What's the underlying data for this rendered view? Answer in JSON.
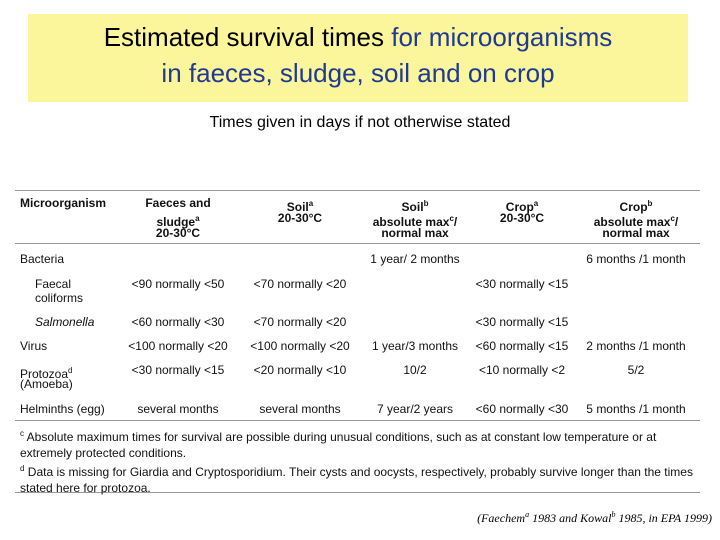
{
  "title": {
    "line1": [
      {
        "text": "Estimated survival times",
        "color": "#000000"
      },
      {
        "text": "for microorganisms",
        "color": "#1f3a93"
      }
    ],
    "line2": {
      "text": "in faeces, sludge, soil and on crop",
      "color": "#1f3a93"
    }
  },
  "subtitle": "Times given in days if not otherwise stated",
  "table": {
    "columns": [
      [
        [
          {
            "text": "Microorganism"
          }
        ]
      ],
      [
        [
          {
            "text": "Faeces and"
          }
        ],
        [
          {
            "text": "sludge"
          },
          {
            "text": "a",
            "sup": true
          }
        ],
        [
          {
            "text": "20-30°C"
          }
        ]
      ],
      [
        [
          {
            "text": "Soil"
          },
          {
            "text": "a",
            "sup": true
          }
        ],
        [
          {
            "text": "20-30°C"
          }
        ]
      ],
      [
        [
          {
            "text": "Soil"
          },
          {
            "text": "b",
            "sup": true
          }
        ],
        [
          {
            "text": "absolute max"
          },
          {
            "text": "c",
            "sup": true
          },
          {
            "text": "/"
          }
        ],
        [
          {
            "text": "normal max"
          }
        ]
      ],
      [
        [
          {
            "text": "Crop"
          },
          {
            "text": "a",
            "sup": true
          }
        ],
        [
          {
            "text": "20-30°C"
          }
        ]
      ],
      [
        [
          {
            "text": "Crop"
          },
          {
            "text": "b",
            "sup": true
          }
        ],
        [
          {
            "text": "absolute max"
          },
          {
            "text": "c",
            "sup": true
          },
          {
            "text": "/"
          }
        ],
        [
          {
            "text": "normal max"
          }
        ]
      ]
    ],
    "rows": [
      {
        "name": [
          [
            {
              "text": "Bacteria"
            }
          ]
        ],
        "cells": [
          null,
          null,
          "1 year/ 2 months",
          null,
          "6 months /1 month"
        ]
      },
      {
        "name": [
          [
            {
              "text": "Faecal"
            }
          ],
          [
            {
              "text": "coliforms"
            }
          ]
        ],
        "cells": [
          "<90 normally <50",
          "<70 normally <20",
          null,
          "<30 normally <15",
          null
        ]
      },
      {
        "name": [
          [
            {
              "text": "Salmonella",
              "italic": true
            }
          ]
        ],
        "cells": [
          "<60 normally <30",
          "<70 normally <20",
          null,
          "<30 normally <15",
          null
        ]
      },
      {
        "name": [
          [
            {
              "text": "Virus"
            }
          ]
        ],
        "cells": [
          "<100 normally <20",
          "<100 normally <20",
          "1 year/3 months",
          "<60 normally <15",
          "2 months /1 month"
        ]
      },
      {
        "name": [
          [
            {
              "text": "Protozoa"
            },
            {
              "text": "d",
              "sup": true
            }
          ],
          [
            {
              "text": "(Amoeba)"
            }
          ]
        ],
        "cells": [
          "<30 normally <15",
          "<20 normally <10",
          "10/2",
          "<10 normally <2",
          "5/2"
        ]
      },
      {
        "name": [
          [
            {
              "text": "Helminths (egg)"
            }
          ]
        ],
        "cells": [
          "several months",
          "several months",
          "7 year/2 years",
          "<60 normally <30",
          "5 months /1 month"
        ]
      }
    ]
  },
  "footnotes": [
    [
      {
        "text": "c",
        "sup": true
      },
      {
        "text": " Absolute maximum times for survival are possible during unusual conditions, such as at constant low temperature or at extremely protected conditions."
      }
    ],
    [
      {
        "text": "d",
        "sup": true
      },
      {
        "text": " Data is missing for Giardia and Cryptosporidium. Their cysts and oocysts, respectively, probably survive longer than the times stated here for protozoa."
      }
    ]
  ],
  "source": [
    {
      "text": "(Faechem"
    },
    {
      "text": "a",
      "sup": true
    },
    {
      "text": " 1983 and Kowal"
    },
    {
      "text": "b",
      "sup": true
    },
    {
      "text": " 1985, in EPA 1999)"
    }
  ]
}
